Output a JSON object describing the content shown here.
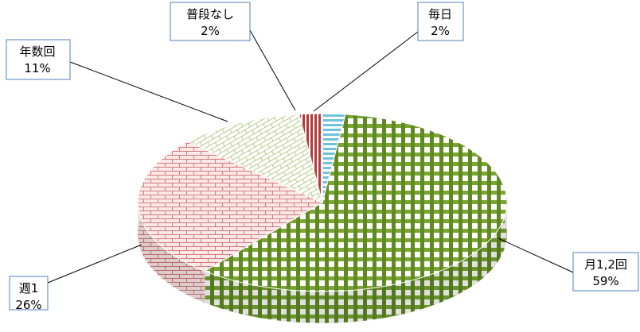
{
  "chart_data": {
    "type": "pie",
    "style": "3d",
    "slices": [
      {
        "label": "毎日",
        "value": 2,
        "pct_text": "2%",
        "color": "#5fb3d0"
      },
      {
        "label": "月1,2回",
        "value": 59,
        "pct_text": "59%",
        "color": "#5b7f1d"
      },
      {
        "label": "週1",
        "value": 26,
        "pct_text": "26%",
        "color": "#d97777"
      },
      {
        "label": "年数回",
        "value": 11,
        "pct_text": "11%",
        "color": "#8fb35a"
      },
      {
        "label": "普段なし",
        "value": 2,
        "pct_text": "2%",
        "color": "#b33a3a"
      }
    ],
    "legend": "none"
  }
}
